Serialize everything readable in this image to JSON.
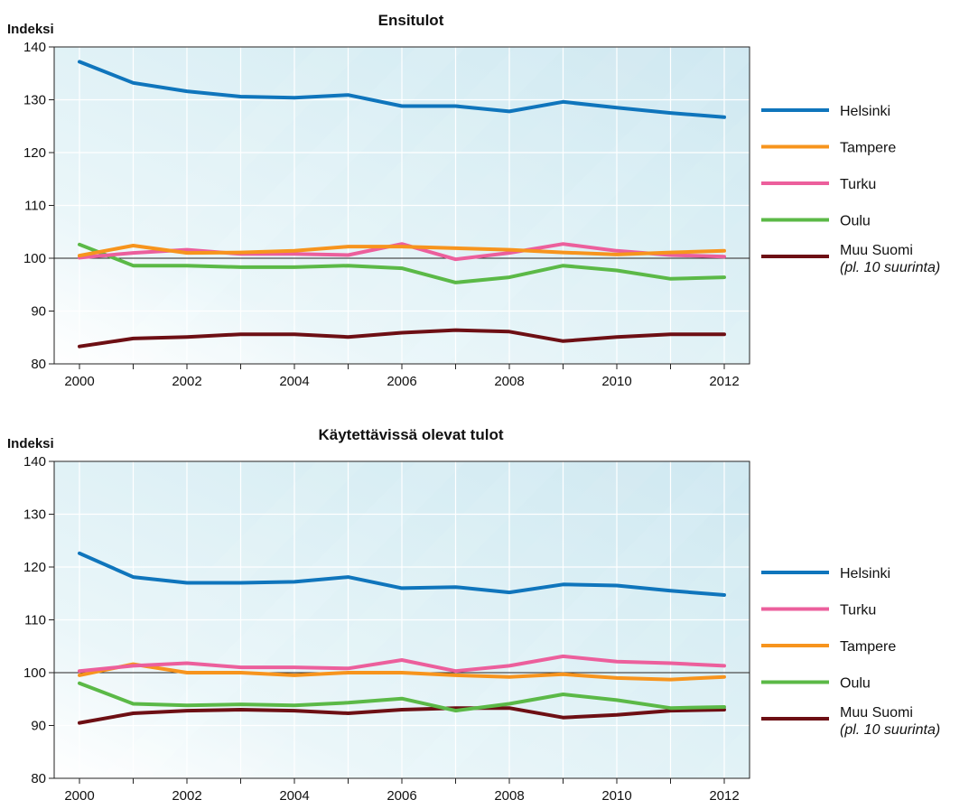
{
  "chart_data": [
    {
      "type": "line",
      "title": "Ensitulot",
      "ylabel": "Indeksi",
      "xlabel": "",
      "x": [
        2000,
        2001,
        2002,
        2003,
        2004,
        2005,
        2006,
        2007,
        2008,
        2009,
        2010,
        2011,
        2012
      ],
      "xticks": [
        "2000",
        "2002",
        "2004",
        "2006",
        "2008",
        "2010",
        "2012"
      ],
      "yticks": [
        "80",
        "90",
        "100",
        "110",
        "120",
        "130",
        "140"
      ],
      "ylim": [
        80,
        140
      ],
      "reference_line": 100,
      "grid": true,
      "legend_position": "right",
      "series": [
        {
          "name": "Helsinki",
          "color": "#0f75bc",
          "values": [
            137.2,
            133.2,
            131.6,
            130.6,
            130.4,
            130.9,
            128.8,
            128.8,
            127.8,
            129.6,
            128.5,
            127.5,
            126.7
          ]
        },
        {
          "name": "Tampere",
          "color": "#f7941d",
          "values": [
            100.5,
            102.4,
            101.0,
            101.1,
            101.4,
            102.2,
            102.2,
            101.9,
            101.6,
            101.1,
            100.7,
            101.1,
            101.4
          ]
        },
        {
          "name": "Turku",
          "color": "#ec5f9c",
          "values": [
            100.1,
            101.0,
            101.6,
            100.8,
            100.8,
            100.6,
            102.7,
            99.8,
            101.0,
            102.7,
            101.4,
            100.6,
            100.3
          ]
        },
        {
          "name": "Oulu",
          "color": "#5bb947",
          "values": [
            102.6,
            98.6,
            98.6,
            98.3,
            98.3,
            98.6,
            98.1,
            95.4,
            96.4,
            98.6,
            97.7,
            96.1,
            96.4
          ]
        },
        {
          "name": "Muu Suomi",
          "name_sub": "(pl. 10 suurinta)",
          "color": "#6d0f14",
          "values": [
            83.3,
            84.8,
            85.1,
            85.6,
            85.6,
            85.1,
            85.9,
            86.4,
            86.1,
            84.3,
            85.1,
            85.6,
            85.6
          ]
        }
      ]
    },
    {
      "type": "line",
      "title": "Käytettävissä olevat tulot",
      "ylabel": "Indeksi",
      "xlabel": "",
      "x": [
        2000,
        2001,
        2002,
        2003,
        2004,
        2005,
        2006,
        2007,
        2008,
        2009,
        2010,
        2011,
        2012
      ],
      "xticks": [
        "2000",
        "2002",
        "2004",
        "2006",
        "2008",
        "2010",
        "2012"
      ],
      "yticks": [
        "80",
        "90",
        "100",
        "110",
        "120",
        "130",
        "140"
      ],
      "ylim": [
        80,
        140
      ],
      "reference_line": 100,
      "grid": true,
      "legend_position": "right",
      "series": [
        {
          "name": "Helsinki",
          "color": "#0f75bc",
          "values": [
            122.6,
            118.1,
            117.0,
            117.0,
            117.2,
            118.1,
            116.0,
            116.2,
            115.2,
            116.7,
            116.5,
            115.5,
            114.7
          ]
        },
        {
          "name": "Turku",
          "color": "#ec5f9c",
          "values": [
            100.3,
            101.3,
            101.8,
            101.0,
            101.0,
            100.8,
            102.4,
            100.3,
            101.3,
            103.1,
            102.1,
            101.8,
            101.3
          ]
        },
        {
          "name": "Tampere",
          "color": "#f7941d",
          "values": [
            99.5,
            101.6,
            100.0,
            100.0,
            99.5,
            100.0,
            100.0,
            99.5,
            99.2,
            99.7,
            99.0,
            98.7,
            99.2
          ]
        },
        {
          "name": "Oulu",
          "color": "#5bb947",
          "values": [
            98.0,
            94.1,
            93.8,
            94.0,
            93.8,
            94.3,
            95.1,
            92.8,
            94.1,
            95.9,
            94.8,
            93.3,
            93.5
          ]
        },
        {
          "name": "Muu Suomi",
          "name_sub": "(pl. 10 suurinta)",
          "color": "#6d0f14",
          "values": [
            90.5,
            92.3,
            92.8,
            93.0,
            92.8,
            92.3,
            93.0,
            93.3,
            93.3,
            91.5,
            92.0,
            92.8,
            93.0
          ]
        }
      ]
    }
  ]
}
